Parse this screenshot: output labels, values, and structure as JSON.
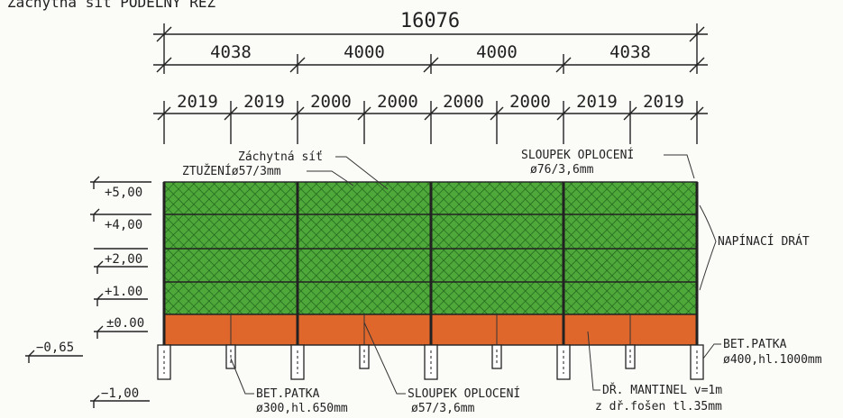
{
  "header": {
    "cut_title": "Záchytná síť PODÉLNÝ ŘEZ"
  },
  "dimensions": {
    "overall": "16076",
    "sections": [
      "4038",
      "4000",
      "4000",
      "4038"
    ],
    "bays": [
      "2019",
      "2019",
      "2000",
      "2000",
      "2000",
      "2000",
      "2019",
      "2019"
    ]
  },
  "levels": {
    "l500": "+5,00",
    "l400": "+4,00",
    "l200": "+2,00",
    "l100": "+1.00",
    "l000": "±0.00",
    "lm065": "−0,65",
    "lm100": "−1,00"
  },
  "labels": {
    "net": "Záchytná síť",
    "bracing": "ZTUŽENÍø57/3mm",
    "fence_post_top_line1": "SLOUPEK OPLOCENÍ",
    "fence_post_top_line2": "ø76/3,6mm",
    "tension_wire": "NAPÍNACÍ DRÁT",
    "footing_small_line1": "BET.PATKA",
    "footing_small_line2": "ø300,hl.650mm",
    "fence_post_bottom_line1": "SLOUPEK OPLOCENÍ",
    "fence_post_bottom_line2": "ø57/3,6mm",
    "board_line1": "DŘ. MANTINEL v=1m",
    "board_line2": "z dř.fošen tl.35mm",
    "footing_large_line1": "BET.PATKA",
    "footing_large_line2": "ø400,hl.1000mm"
  },
  "colors": {
    "net_green": "#4ea83a",
    "net_mesh": "#1e5e1a",
    "board_orange": "#e0672b",
    "line": "#222222"
  }
}
